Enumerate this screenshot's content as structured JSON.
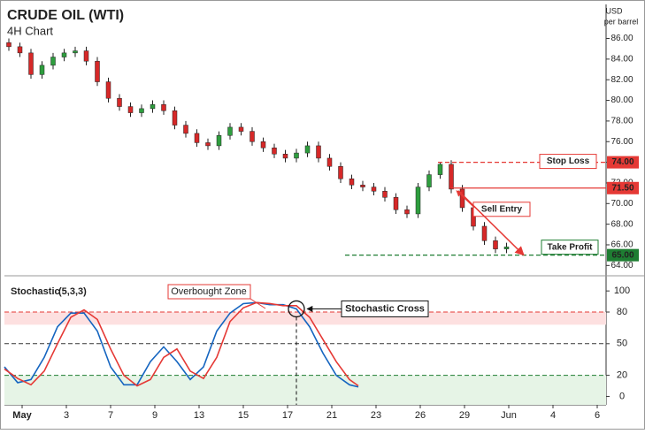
{
  "chart_data": [
    {
      "type": "candlestick",
      "title": "CRUDE OIL (WTI)",
      "subtitle": "4H Chart",
      "y_label_lines": [
        "USD",
        "per barrel"
      ],
      "up_color": "#2e9e3e",
      "down_color": "#d62828",
      "xlim": [
        -0.8,
        26.4
      ],
      "ylim": [
        63,
        89.3
      ],
      "yticks": [
        {
          "value": 64,
          "label": "64.00"
        },
        {
          "value": 66,
          "label": "66.00"
        },
        {
          "value": 68,
          "label": "68.00"
        },
        {
          "value": 70,
          "label": "70.00"
        },
        {
          "value": 72,
          "label": "72.00"
        },
        {
          "value": 74,
          "label": "74.00"
        },
        {
          "value": 76,
          "label": "76.00"
        },
        {
          "value": 78,
          "label": "78.00"
        },
        {
          "value": 80,
          "label": "80.00"
        },
        {
          "value": 82,
          "label": "82.00"
        },
        {
          "value": 84,
          "label": "84.00"
        },
        {
          "value": 86,
          "label": "86.00"
        }
      ],
      "x": [
        -0.6,
        -0.1,
        0.4,
        0.9,
        1.4,
        1.9,
        2.4,
        2.9,
        3.4,
        3.9,
        4.4,
        4.9,
        5.4,
        5.9,
        6.4,
        6.9,
        7.4,
        7.9,
        8.4,
        8.9,
        9.4,
        9.9,
        10.4,
        10.9,
        11.4,
        11.9,
        12.4,
        12.9,
        13.4,
        13.9,
        14.4,
        14.9,
        15.4,
        15.9,
        16.4,
        16.9,
        17.4,
        17.9,
        18.4,
        18.9,
        19.4,
        19.9,
        20.4,
        20.9,
        21.4,
        21.9
      ],
      "ohlc": [
        [
          85.6,
          86.0,
          84.8,
          85.2
        ],
        [
          85.2,
          85.6,
          84.2,
          84.6
        ],
        [
          84.6,
          85.0,
          82.1,
          82.5
        ],
        [
          82.5,
          83.8,
          82.1,
          83.4
        ],
        [
          83.4,
          84.6,
          83.0,
          84.2
        ],
        [
          84.2,
          85.0,
          83.8,
          84.6
        ],
        [
          84.6,
          85.2,
          84.2,
          84.8
        ],
        [
          84.8,
          85.2,
          83.4,
          83.8
        ],
        [
          83.8,
          84.2,
          81.4,
          81.8
        ],
        [
          81.8,
          82.2,
          79.8,
          80.2
        ],
        [
          80.2,
          80.6,
          79.0,
          79.4
        ],
        [
          79.4,
          79.8,
          78.4,
          78.8
        ],
        [
          78.8,
          79.6,
          78.4,
          79.2
        ],
        [
          79.2,
          80.0,
          78.8,
          79.6
        ],
        [
          79.6,
          80.0,
          78.6,
          79.0
        ],
        [
          79.0,
          79.4,
          77.2,
          77.6
        ],
        [
          77.6,
          78.0,
          76.4,
          76.8
        ],
        [
          76.8,
          77.2,
          75.5,
          75.9
        ],
        [
          75.9,
          76.3,
          75.2,
          75.6
        ],
        [
          75.6,
          77.0,
          75.2,
          76.6
        ],
        [
          76.6,
          77.8,
          76.2,
          77.4
        ],
        [
          77.4,
          77.8,
          76.6,
          77.0
        ],
        [
          77.0,
          77.4,
          75.6,
          76.0
        ],
        [
          76.0,
          76.4,
          75.0,
          75.4
        ],
        [
          75.4,
          75.8,
          74.4,
          74.8
        ],
        [
          74.8,
          75.2,
          74.0,
          74.4
        ],
        [
          74.4,
          75.3,
          74.0,
          74.9
        ],
        [
          74.9,
          76.0,
          74.5,
          75.6
        ],
        [
          75.6,
          76.0,
          74.0,
          74.4
        ],
        [
          74.4,
          74.8,
          73.2,
          73.6
        ],
        [
          73.6,
          74.0,
          72.0,
          72.4
        ],
        [
          72.4,
          72.8,
          71.4,
          71.8
        ],
        [
          71.8,
          72.2,
          71.2,
          71.6
        ],
        [
          71.6,
          72.0,
          70.8,
          71.2
        ],
        [
          71.2,
          71.6,
          70.2,
          70.6
        ],
        [
          70.6,
          71.0,
          69.0,
          69.4
        ],
        [
          69.4,
          69.8,
          68.6,
          69.0
        ],
        [
          69.0,
          72.0,
          68.6,
          71.6
        ],
        [
          71.6,
          73.2,
          71.2,
          72.8
        ],
        [
          72.8,
          74.0,
          72.4,
          73.8
        ],
        [
          73.8,
          74.2,
          71.0,
          71.4
        ],
        [
          71.4,
          71.8,
          69.2,
          69.6
        ],
        [
          69.6,
          70.0,
          67.4,
          67.8
        ],
        [
          67.8,
          68.2,
          66.0,
          66.4
        ],
        [
          66.4,
          66.8,
          65.2,
          65.6
        ],
        [
          65.6,
          66.2,
          65.2,
          65.8
        ]
      ],
      "levels": [
        {
          "name": "Stop Loss",
          "value": 74,
          "value_label": "74.00",
          "color": "#e53935"
        },
        {
          "name": "Sell Entry",
          "value": 71.5,
          "value_label": "71.50",
          "color": "#e53935"
        },
        {
          "name": "Take Profit",
          "value": 65,
          "value_label": "65.00",
          "color": "#1e7d32"
        }
      ]
    },
    {
      "type": "line",
      "title": "Stochastic",
      "params": "(5,3,3)",
      "params_color": "#1565c0",
      "xlim": [
        -0.8,
        26.4
      ],
      "ylim": [
        -8,
        106
      ],
      "yticks": [
        0,
        20,
        50,
        80,
        100
      ],
      "xticks": [
        {
          "value": 0,
          "label": "May"
        },
        {
          "value": 2,
          "label": "3"
        },
        {
          "value": 4,
          "label": "7"
        },
        {
          "value": 6,
          "label": "9"
        },
        {
          "value": 8,
          "label": "13"
        },
        {
          "value": 10,
          "label": "15"
        },
        {
          "value": 12,
          "label": "17"
        },
        {
          "value": 14,
          "label": "21"
        },
        {
          "value": 16,
          "label": "23"
        },
        {
          "value": 18,
          "label": "26"
        },
        {
          "value": 20,
          "label": "29"
        },
        {
          "value": 22,
          "label": "Jun"
        },
        {
          "value": 24,
          "label": "4"
        },
        {
          "value": 26,
          "label": "6"
        }
      ],
      "x": [
        -0.8,
        -0.2,
        0.4,
        1,
        1.6,
        2.2,
        2.8,
        3.4,
        4,
        4.6,
        5.2,
        5.8,
        6.4,
        7,
        7.6,
        8.2,
        8.8,
        9.4,
        10,
        10.6,
        11.2,
        11.8,
        12.4,
        13,
        13.6,
        14.2,
        14.8,
        15.2
      ],
      "series": [
        {
          "color": "#1565c0",
          "values": [
            28,
            13,
            16,
            37,
            66,
            79,
            79,
            62,
            28,
            11,
            11,
            33,
            47,
            33,
            16,
            28,
            62,
            79,
            88,
            89,
            87,
            87,
            83,
            66,
            41,
            20,
            11,
            9
          ]
        },
        {
          "color": "#e53935",
          "values": [
            26,
            17,
            11,
            24,
            50,
            75,
            82,
            73,
            45,
            20,
            10,
            16,
            37,
            45,
            24,
            17,
            37,
            71,
            84,
            89,
            88,
            86,
            86,
            75,
            54,
            33,
            16,
            10
          ]
        }
      ],
      "hlines": [
        {
          "value": 80,
          "color": "#e53935"
        },
        {
          "value": 50,
          "color": "#333333"
        },
        {
          "value": 20,
          "color": "#1e7d32"
        }
      ],
      "zones": [
        {
          "name": "Overbought Zone",
          "from": 68,
          "to": 80,
          "color": "#fde0e0"
        },
        {
          "from": -8,
          "to": 20,
          "color": "#e6f4e6"
        }
      ],
      "annotation": {
        "text": "Stochastic Cross",
        "x": 12.4,
        "y": 83
      }
    }
  ]
}
